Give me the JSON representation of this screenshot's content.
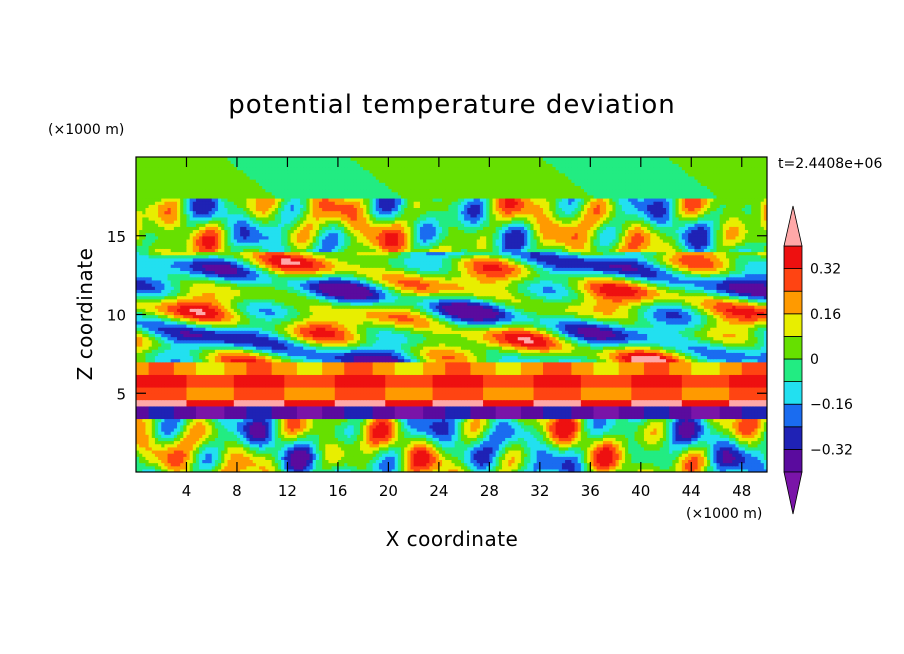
{
  "chart_data": {
    "type": "heatmap",
    "title": "potential temperature deviation",
    "xlabel": "X coordinate",
    "ylabel": "Z coordinate",
    "x_unit": "(×1000 m)",
    "y_unit": "(×1000 m)",
    "time_label": "t=2.4408e+06",
    "xlim": [
      0,
      50
    ],
    "ylim": [
      0,
      20
    ],
    "x_ticks": [
      4,
      8,
      12,
      16,
      20,
      24,
      28,
      32,
      36,
      40,
      44,
      48
    ],
    "y_ticks": [
      5,
      10,
      15
    ],
    "colorbar": {
      "levels": [
        -0.4,
        -0.32,
        -0.24,
        -0.16,
        -0.08,
        0,
        0.08,
        0.16,
        0.24,
        0.32,
        0.4
      ],
      "tick_labels": [
        "0.32",
        "0.16",
        "0",
        "−0.16",
        "−0.32"
      ],
      "tick_values": [
        0.32,
        0.16,
        0,
        -0.16,
        -0.32
      ],
      "colors": [
        "#7a14a8",
        "#5a0b9e",
        "#1f22b5",
        "#1a6cf0",
        "#22e0f0",
        "#22ec82",
        "#66e000",
        "#e8ee00",
        "#ff9a00",
        "#ff4412",
        "#ee1010",
        "#ffa8a8"
      ],
      "extend": "both"
    },
    "field_bands": [
      {
        "z": [
          0,
          3.5
        ],
        "pattern": "cellular",
        "range": [
          -0.36,
          0.36
        ]
      },
      {
        "z": [
          3.5,
          4.2
        ],
        "pattern": "layer",
        "value": -0.36
      },
      {
        "z": [
          4.2,
          4.7
        ],
        "pattern": "layer",
        "value": 0.4
      },
      {
        "z": [
          4.7,
          5.4
        ],
        "pattern": "layer",
        "value": 0.24
      },
      {
        "z": [
          5.4,
          6.2
        ],
        "pattern": "layer",
        "value": 0.32
      },
      {
        "z": [
          6.2,
          7.0
        ],
        "pattern": "layer",
        "value": 0.2
      },
      {
        "z": [
          7.0,
          14.0
        ],
        "pattern": "wavy",
        "range": [
          -0.4,
          0.4
        ]
      },
      {
        "z": [
          14.0,
          17.5
        ],
        "pattern": "cellular",
        "range": [
          -0.3,
          0.35
        ]
      },
      {
        "z": [
          17.5,
          20.0
        ],
        "pattern": "smooth",
        "range": [
          -0.04,
          0.06
        ]
      }
    ]
  }
}
